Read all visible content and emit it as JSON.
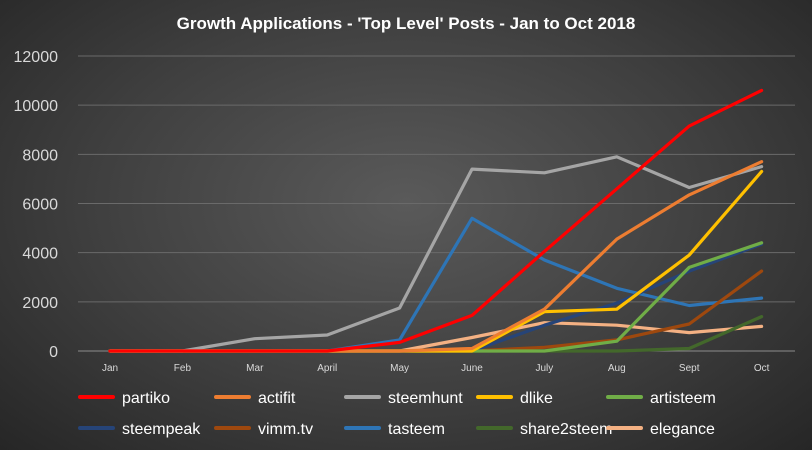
{
  "chart_data": {
    "type": "line",
    "title": "Growth Applications  - 'Top Level' Posts - Jan to Oct 2018",
    "xlabel": "",
    "ylabel": "",
    "categories": [
      "Jan",
      "Feb",
      "Mar",
      "April",
      "May",
      "June",
      "July",
      "Aug",
      "Sept",
      "Oct"
    ],
    "ylim": [
      0,
      12000
    ],
    "yticks": [
      0,
      2000,
      4000,
      6000,
      8000,
      10000,
      12000
    ],
    "ytick_labels": [
      "0",
      "2000",
      "4000",
      "6000",
      "8000",
      "10000",
      "12000"
    ],
    "grid": true,
    "legend_position": "bottom",
    "series": [
      {
        "name": "partiko",
        "color": "#ff0000",
        "values": [
          0,
          0,
          0,
          0,
          350,
          1450,
          4050,
          6600,
          9150,
          10600
        ]
      },
      {
        "name": "actifit",
        "color": "#ed7d31",
        "values": [
          0,
          0,
          0,
          0,
          0,
          100,
          1700,
          4550,
          6350,
          7700
        ]
      },
      {
        "name": "steemhunt",
        "color": "#a5a5a5",
        "values": [
          0,
          0,
          500,
          650,
          1750,
          7400,
          7250,
          7900,
          6650,
          7500
        ]
      },
      {
        "name": "dlike",
        "color": "#ffc000",
        "values": [
          0,
          0,
          0,
          0,
          0,
          0,
          1600,
          1700,
          3900,
          7300
        ]
      },
      {
        "name": "artisteem",
        "color": "#70ad47",
        "values": [
          0,
          0,
          0,
          0,
          0,
          0,
          0,
          400,
          3400,
          4400
        ]
      },
      {
        "name": "steempeak",
        "color": "#264478",
        "values": [
          0,
          0,
          0,
          0,
          0,
          0,
          1050,
          1950,
          3250,
          4350
        ]
      },
      {
        "name": "vimm.tv",
        "color": "#9e480e",
        "values": [
          0,
          0,
          0,
          0,
          0,
          0,
          150,
          450,
          1100,
          3250
        ]
      },
      {
        "name": "tasteem",
        "color": "#2e75b6",
        "values": [
          0,
          0,
          0,
          0,
          450,
          5400,
          3700,
          2550,
          1850,
          2150
        ]
      },
      {
        "name": "share2steem",
        "color": "#43682b",
        "values": [
          0,
          0,
          0,
          0,
          0,
          0,
          0,
          0,
          100,
          1400
        ]
      },
      {
        "name": "elegance",
        "color": "#f4b183",
        "values": [
          0,
          0,
          0,
          0,
          0,
          550,
          1150,
          1050,
          750,
          1000
        ]
      }
    ]
  }
}
